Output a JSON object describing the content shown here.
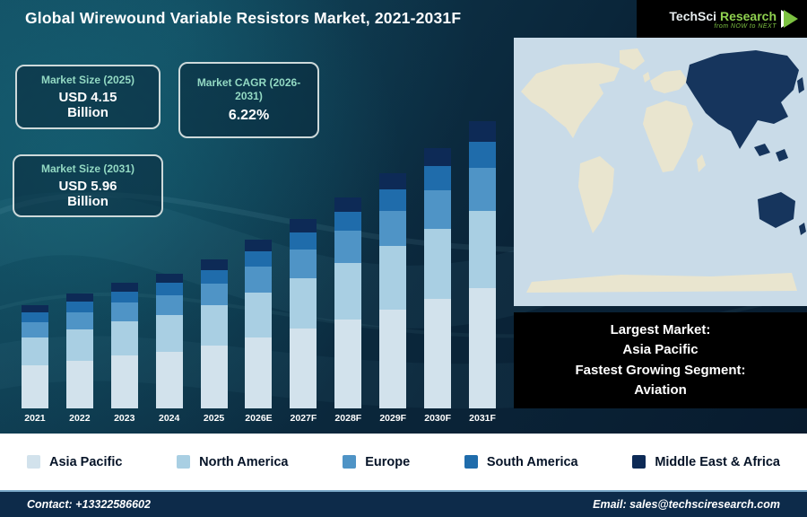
{
  "header": {
    "title": "Global Wirewound Variable Resistors Market, 2021-2031F",
    "logo": {
      "brand_primary": "TechSci",
      "brand_secondary": "Research",
      "tagline": "from NOW to NEXT"
    }
  },
  "stats": [
    {
      "label": "Market Size (2025)",
      "value": "USD 4.15",
      "unit": "Billion"
    },
    {
      "label": "Market CAGR (2026-2031)",
      "value": "6.22%",
      "unit": ""
    },
    {
      "label": "Market Size (2031)",
      "value": "USD 5.96",
      "unit": "Billion"
    }
  ],
  "chart_data": {
    "type": "bar",
    "stacked": true,
    "legend_position": "bottom",
    "categories": [
      "2021",
      "2022",
      "2023",
      "2024",
      "2025",
      "2026E",
      "2027F",
      "2028F",
      "2029F",
      "2030F",
      "2031F"
    ],
    "series": [
      {
        "name": "Asia Pacific",
        "color": "#d2e2ec",
        "values": [
          1.49,
          1.55,
          1.61,
          1.67,
          1.75,
          1.85,
          1.97,
          2.09,
          2.22,
          2.36,
          2.5
        ]
      },
      {
        "name": "North America",
        "color": "#a9cfe3",
        "values": [
          0.96,
          1.0,
          1.04,
          1.07,
          1.12,
          1.19,
          1.26,
          1.34,
          1.43,
          1.51,
          1.61
        ]
      },
      {
        "name": "Europe",
        "color": "#4f94c6",
        "values": [
          0.53,
          0.56,
          0.58,
          0.59,
          0.62,
          0.66,
          0.7,
          0.75,
          0.79,
          0.84,
          0.89
        ]
      },
      {
        "name": "South America",
        "color": "#1f6cab",
        "values": [
          0.32,
          0.33,
          0.35,
          0.36,
          0.37,
          0.4,
          0.42,
          0.45,
          0.48,
          0.51,
          0.54
        ]
      },
      {
        "name": "Middle East & Africa",
        "color": "#0d2a56",
        "values": [
          0.25,
          0.26,
          0.27,
          0.28,
          0.29,
          0.31,
          0.33,
          0.34,
          0.36,
          0.39,
          0.42
        ]
      }
    ],
    "totals": [
      3.55,
      3.7,
      3.85,
      3.97,
      4.15,
      4.41,
      4.68,
      4.97,
      5.28,
      5.61,
      5.96
    ],
    "units": "USD Billion"
  },
  "map": {
    "ocean_color": "#c9dbe8",
    "land_color": "#e9e5cf",
    "highlight_color": "#16355d"
  },
  "info_box": {
    "lines": [
      "Largest Market:",
      "Asia Pacific",
      "Fastest Growing Segment:",
      "Aviation"
    ]
  },
  "footer": {
    "contact": "Contact: +13322586602",
    "email": "Email: sales@techsciresearch.com"
  },
  "colors": {
    "background_dark": "#0a2438",
    "accent_teal": "#93d9c3",
    "brand_green": "#7dc242",
    "footer_bg": "#0d2b4a",
    "info_box_bg": "#000000"
  }
}
